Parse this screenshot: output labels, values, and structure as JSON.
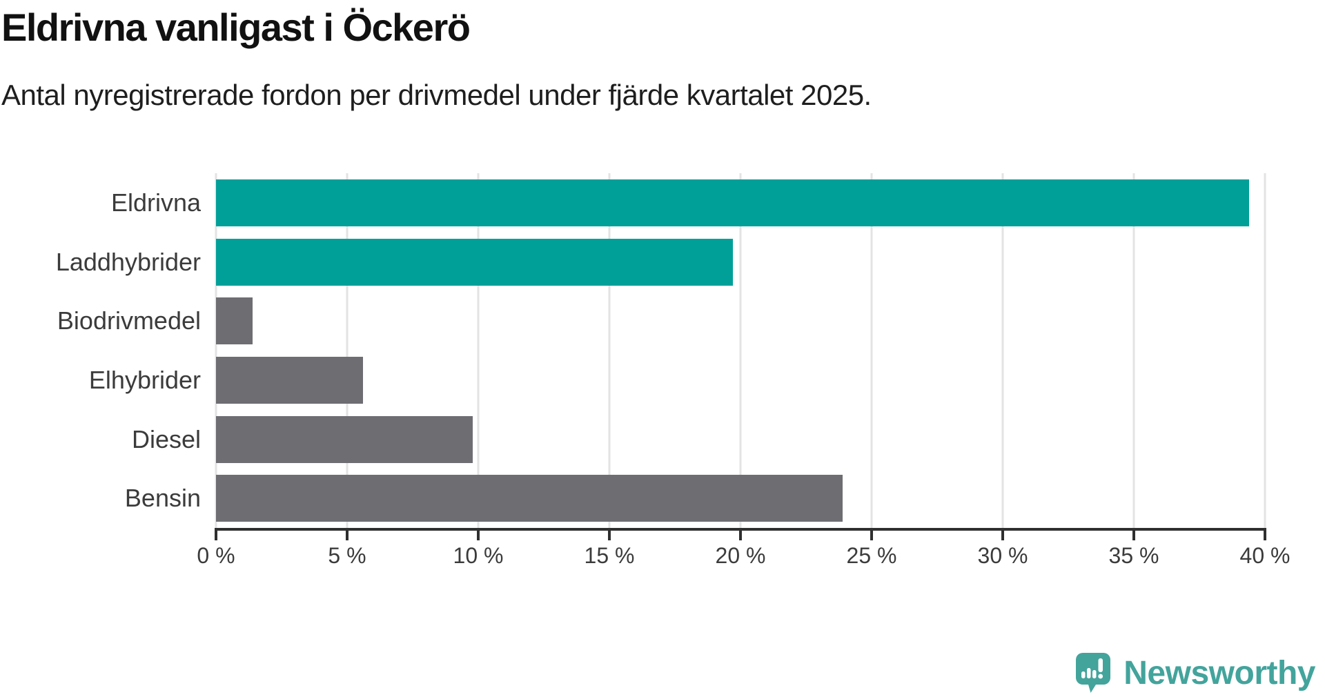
{
  "header": {
    "title": "Eldrivna vanligast i Öckerö",
    "subtitle": "Antal nyregistrerade fordon per drivmedel under fjärde kvartalet 2025."
  },
  "chart_data": {
    "type": "bar",
    "orientation": "horizontal",
    "title": "Eldrivna vanligast i Öckerö",
    "subtitle": "Antal nyregistrerade fordon per drivmedel under fjärde kvartalet 2025.",
    "categories": [
      "Eldrivna",
      "Laddhybrider",
      "Biodrivmedel",
      "Elhybrider",
      "Diesel",
      "Bensin"
    ],
    "values": [
      39.4,
      19.7,
      1.4,
      5.6,
      9.8,
      23.9
    ],
    "unit": "%",
    "bar_colors": [
      "#00a099",
      "#00a099",
      "#6d6d72",
      "#6d6d72",
      "#6d6d72",
      "#6d6d72"
    ],
    "xlim": [
      0,
      40
    ],
    "x_ticks": [
      0,
      5,
      10,
      15,
      20,
      25,
      30,
      35,
      40
    ],
    "x_tick_labels": [
      "0 %",
      "5 %",
      "10 %",
      "15 %",
      "20 %",
      "25 %",
      "30 %",
      "35 %",
      "40 %"
    ],
    "grid": true,
    "legend_position": "none",
    "xlabel": "",
    "ylabel": ""
  },
  "colors": {
    "accent_teal": "#00a099",
    "bar_gray": "#6d6d72",
    "axis": "#2f2f2f",
    "gridline": "#e3e3e3",
    "title_text": "#111111",
    "label_text": "#3b3b3b",
    "logo_teal": "#43a49c"
  },
  "footer": {
    "brand": "Newsworthy",
    "logo_icon": "newsworthy-speech-bubble-chart-icon"
  }
}
